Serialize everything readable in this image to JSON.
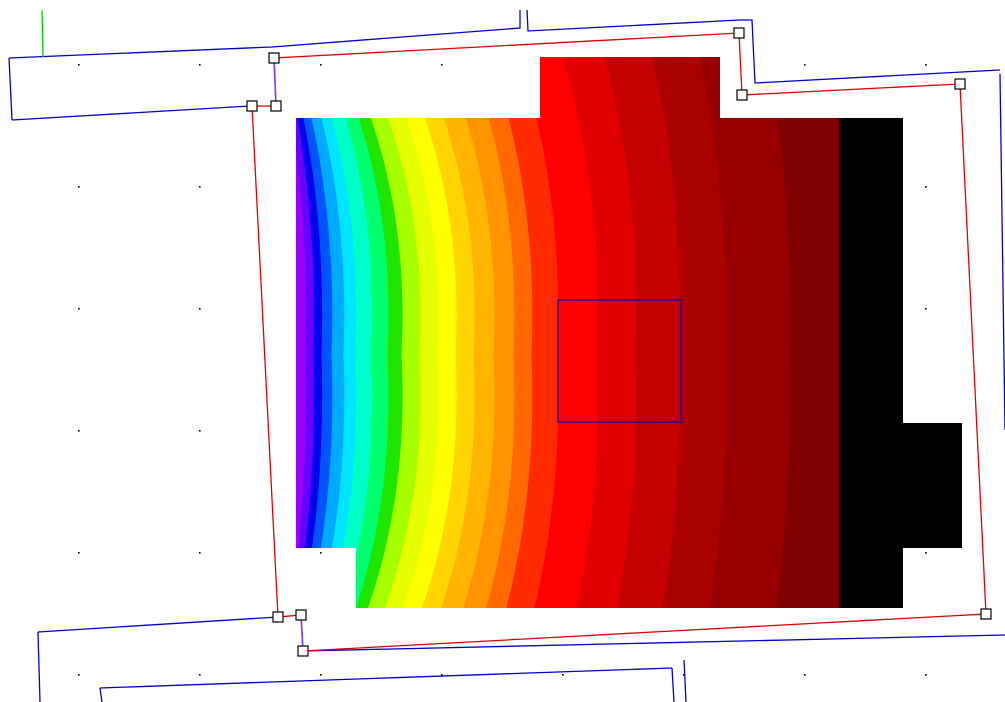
{
  "view": {
    "background": "#ffffff",
    "grid_dots": true,
    "grid_dot_color": "#000000"
  },
  "colors": {
    "wall_outline": "#0000cc",
    "boundary_path": "#e00000",
    "boundary_connector": "#7a3cff",
    "node_fill": "#ffffff",
    "node_stroke": "#000000",
    "selection_box": "#0000cc",
    "axis_marker": "#00cc00",
    "cutout": "#ffffff"
  },
  "contour": {
    "gradient_direction": "left-to-right",
    "bands": [
      "#9a00ff",
      "#6600ff",
      "#0000ee",
      "#0055ff",
      "#00aaff",
      "#00e5ff",
      "#00ffc8",
      "#00ff6e",
      "#1ee600",
      "#a8ff00",
      "#e6ff00",
      "#ffff00",
      "#ffd400",
      "#ffb400",
      "#ff9400",
      "#ff6a00",
      "#ff2a00",
      "#ff0000",
      "#e00000",
      "#c40000",
      "#aa0000",
      "#960000",
      "#800000",
      "#000000"
    ]
  },
  "boundary_nodes_count": 10
}
